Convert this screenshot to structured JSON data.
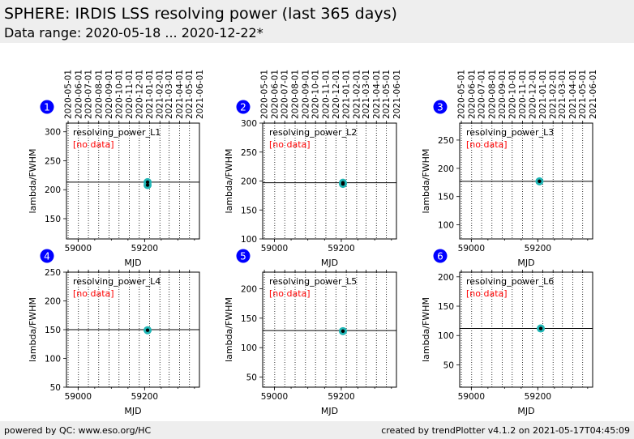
{
  "header": {
    "title": "SPHERE: IRDIS LSS resolving power (last 365 days)",
    "subtitle": "Data range: 2020-05-18 ... 2020-12-22*"
  },
  "footer": {
    "left": "powered by QC: www.eso.org/HC",
    "right": "created by trendPlotter v4.1.2 on 2021-05-17T04:45:09"
  },
  "colors": {
    "badge": "#0000ff",
    "marker_fill": "#1fb5b5",
    "marker_dot": "#000000",
    "no_data": "#ff0000",
    "header_bg": "#eeeeee"
  },
  "chart_data": [
    {
      "type": "scatter",
      "panel_number": "1",
      "label": "resolving_power_L1",
      "note": "[no data]",
      "xlabel": "MJD",
      "ylabel": "lambda/FWHM",
      "xlim": [
        58965,
        59365
      ],
      "ylim": [
        115,
        315
      ],
      "xticks": [
        59000,
        59200
      ],
      "yticks": [
        150,
        200,
        250,
        300
      ],
      "reference_line": 213,
      "points": [
        {
          "x": 59209,
          "y": 213
        },
        {
          "x": 59209,
          "y": 208
        }
      ],
      "top_axis_dates": [
        "2020-05-01",
        "2020-06-01",
        "2020-07-01",
        "2020-08-01",
        "2020-09-01",
        "2020-10-01",
        "2020-11-01",
        "2020-12-01",
        "2021-01-01",
        "2021-02-01",
        "2021-03-01",
        "2021-04-01",
        "2021-05-01",
        "2021-06-01"
      ]
    },
    {
      "type": "scatter",
      "panel_number": "2",
      "label": "resolving_power_L2",
      "note": "[no data]",
      "xlabel": "MJD",
      "ylabel": "lambda/FWHM",
      "xlim": [
        58965,
        59365
      ],
      "ylim": [
        100,
        300
      ],
      "xticks": [
        59000,
        59200
      ],
      "yticks": [
        100,
        150,
        200,
        250,
        300
      ],
      "reference_line": 197,
      "points": [
        {
          "x": 59205,
          "y": 197
        },
        {
          "x": 59205,
          "y": 195
        }
      ],
      "top_axis_dates": [
        "2020-05-01",
        "2020-06-01",
        "2020-07-01",
        "2020-08-01",
        "2020-09-01",
        "2020-10-01",
        "2020-11-01",
        "2020-12-01",
        "2021-01-01",
        "2021-02-01",
        "2021-03-01",
        "2021-04-01",
        "2021-05-01",
        "2021-06-01"
      ]
    },
    {
      "type": "scatter",
      "panel_number": "3",
      "label": "resolving_power_L3",
      "note": "[no data]",
      "xlabel": "MJD",
      "ylabel": "lambda/FWHM",
      "xlim": [
        58965,
        59365
      ],
      "ylim": [
        75,
        280
      ],
      "xticks": [
        59000,
        59200
      ],
      "yticks": [
        100,
        150,
        200,
        250
      ],
      "reference_line": 177,
      "points": [
        {
          "x": 59205,
          "y": 177
        }
      ],
      "top_axis_dates": [
        "2020-05-01",
        "2020-06-01",
        "2020-07-01",
        "2020-08-01",
        "2020-09-01",
        "2020-10-01",
        "2020-11-01",
        "2020-12-01",
        "2021-01-01",
        "2021-02-01",
        "2021-03-01",
        "2021-04-01",
        "2021-05-01",
        "2021-06-01"
      ]
    },
    {
      "type": "scatter",
      "panel_number": "4",
      "label": "resolving_power_L4",
      "note": "[no data]",
      "xlabel": "MJD",
      "ylabel": "lambda/FWHM",
      "xlim": [
        58965,
        59365
      ],
      "ylim": [
        50,
        250
      ],
      "xticks": [
        59000,
        59200
      ],
      "yticks": [
        50,
        100,
        150,
        200,
        250
      ],
      "reference_line": 150,
      "points": [
        {
          "x": 59209,
          "y": 149
        }
      ],
      "top_axis_dates": []
    },
    {
      "type": "scatter",
      "panel_number": "5",
      "label": "resolving_power_L5",
      "note": "[no data]",
      "xlabel": "MJD",
      "ylabel": "lambda/FWHM",
      "xlim": [
        58965,
        59365
      ],
      "ylim": [
        33,
        228
      ],
      "xticks": [
        59000,
        59200
      ],
      "yticks": [
        50,
        100,
        150,
        200
      ],
      "reference_line": 129,
      "points": [
        {
          "x": 59205,
          "y": 128
        }
      ],
      "top_axis_dates": []
    },
    {
      "type": "scatter",
      "panel_number": "6",
      "label": "resolving_power_L6",
      "note": "[no data]",
      "xlabel": "MJD",
      "ylabel": "lambda/FWHM",
      "xlim": [
        58965,
        59365
      ],
      "ylim": [
        12,
        208
      ],
      "xticks": [
        59000,
        59200
      ],
      "yticks": [
        50,
        100,
        150,
        200
      ],
      "reference_line": 112,
      "points": [
        {
          "x": 59209,
          "y": 112
        }
      ],
      "top_axis_dates": []
    }
  ]
}
